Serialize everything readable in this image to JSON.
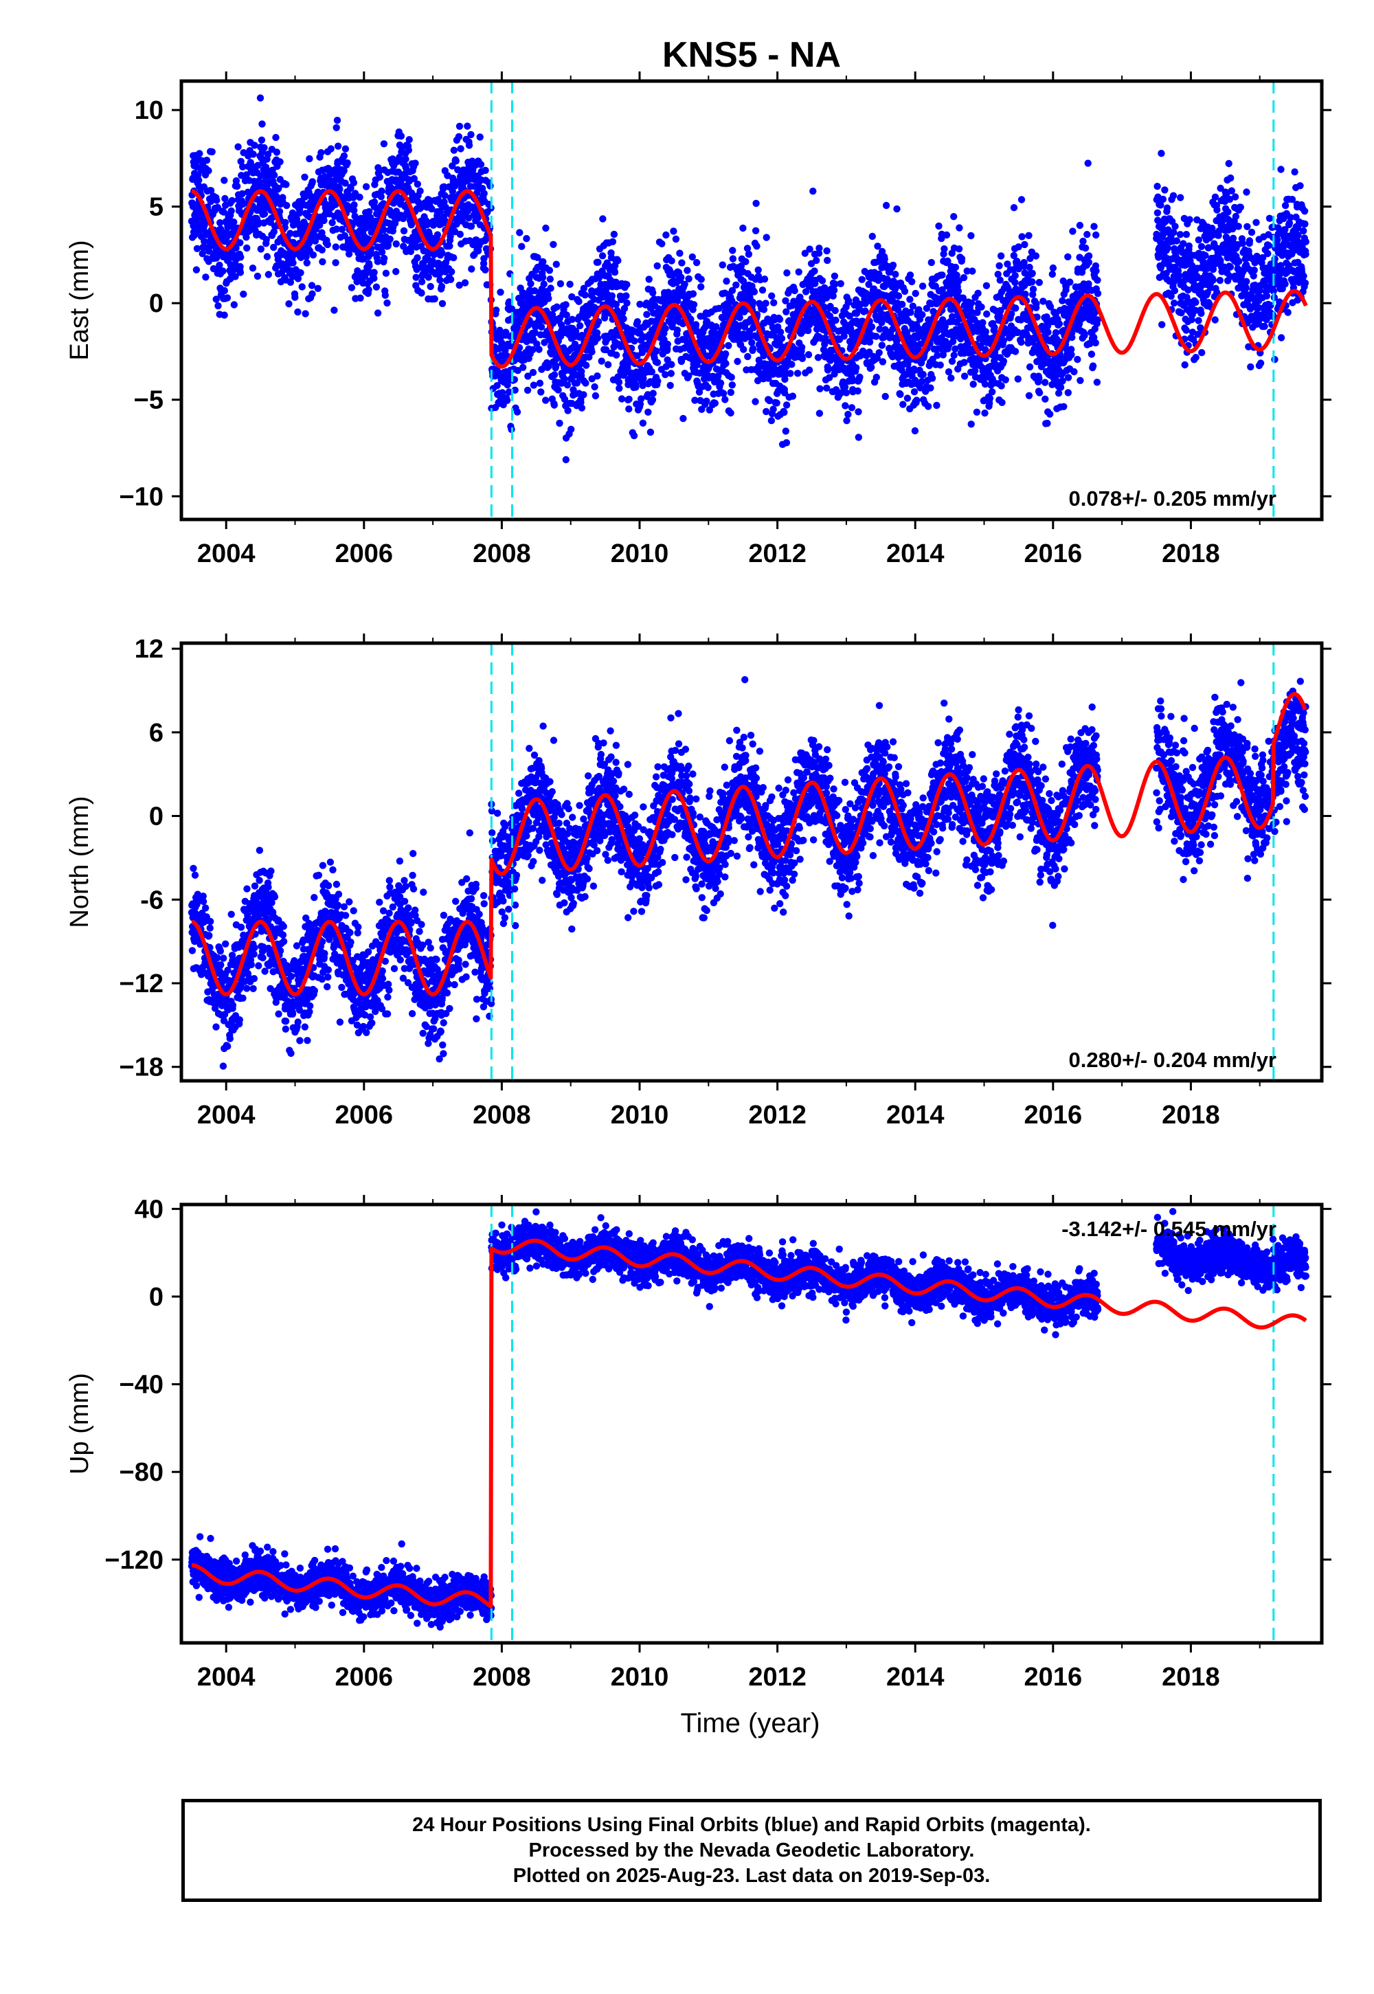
{
  "title": "KNS5 - NA",
  "chart_data": [
    {
      "type": "scatter",
      "ylabel": "East (mm)",
      "xlabel": "",
      "xlim": [
        2003.35,
        2019.9
      ],
      "ylim": [
        -11.2,
        11.5
      ],
      "xticks": [
        2004,
        2006,
        2008,
        2010,
        2012,
        2014,
        2016,
        2018
      ],
      "xtick_labels": [
        "2004",
        "2006",
        "2008",
        "2010",
        "2012",
        "2014",
        "2016",
        "2018"
      ],
      "yticks": [
        10,
        5,
        0,
        -5,
        -10
      ],
      "ytick_labels": [
        "10",
        "5",
        "0",
        "−5",
        "−10"
      ],
      "rate_text": "0.078+/- 0.205 mm/yr",
      "rate_position": "bottom-right",
      "series": [
        {
          "role": "daily positions",
          "color": "#0000ff",
          "segments": [
            {
              "t0": 2003.5,
              "t1": 2007.85,
              "base": 4.3,
              "trend": 0,
              "amp": 1.5,
              "noise": 1.5
            },
            {
              "t0": 2007.85,
              "t1": 2016.65,
              "base": -1.8,
              "trend": 0.08,
              "amp": 1.5,
              "noise": 1.6
            },
            {
              "t0": 2017.5,
              "t1": 2019.67,
              "base": 2.0,
              "trend": -0.15,
              "amp": 1.5,
              "noise": 1.6
            }
          ]
        },
        {
          "role": "model fit",
          "color": "#ff0000",
          "segments": [
            {
              "t0": 2003.5,
              "t1": 2007.85,
              "base": 4.3,
              "trend": 0,
              "amp": 1.5
            },
            {
              "t0": 2007.85,
              "t1": 2019.67,
              "base": -1.8,
              "trend": 0.08,
              "amp": 1.5
            }
          ]
        }
      ],
      "offsets": [
        2007.85,
        2008.15,
        2019.2
      ],
      "offset_color": "#00e5ee"
    },
    {
      "type": "scatter",
      "ylabel": "North (mm)",
      "xlabel": "",
      "xlim": [
        2003.35,
        2019.9
      ],
      "ylim": [
        -19,
        12.4
      ],
      "xticks": [
        2004,
        2006,
        2008,
        2010,
        2012,
        2014,
        2016,
        2018
      ],
      "xtick_labels": [
        "2004",
        "2006",
        "2008",
        "2010",
        "2012",
        "2014",
        "2016",
        "2018"
      ],
      "yticks": [
        12,
        6,
        0,
        -6,
        -12,
        -18
      ],
      "ytick_labels": [
        "12",
        "6",
        "0",
        "-6",
        "−12",
        "−18"
      ],
      "rate_text": "0.280+/- 0.204 mm/yr",
      "rate_position": "bottom-right",
      "series": [
        {
          "role": "daily positions",
          "color": "#0000ff",
          "segments": [
            {
              "t0": 2003.5,
              "t1": 2007.85,
              "base": -10.2,
              "trend": 0,
              "amp": 2.6,
              "noise": 1.8
            },
            {
              "t0": 2007.85,
              "t1": 2016.65,
              "base": -1.6,
              "trend": 0.3,
              "amp": 2.6,
              "noise": 1.8
            },
            {
              "t0": 2017.5,
              "t1": 2019.67,
              "base": 2.0,
              "trend": 0.6,
              "amp": 2.6,
              "noise": 1.8
            }
          ]
        },
        {
          "role": "model fit",
          "color": "#ff0000",
          "segments": [
            {
              "t0": 2003.5,
              "t1": 2007.85,
              "base": -10.2,
              "trend": 0,
              "amp": 2.6
            },
            {
              "t0": 2007.85,
              "t1": 2019.2,
              "base": -1.6,
              "trend": 0.3,
              "amp": 2.6
            },
            {
              "t0": 2019.2,
              "t1": 2019.67,
              "base": 6.0,
              "trend": 0.5,
              "amp": 2.6
            }
          ]
        }
      ],
      "offsets": [
        2007.85,
        2008.15,
        2019.2
      ],
      "offset_color": "#00e5ee"
    },
    {
      "type": "scatter",
      "ylabel": "Up (mm)",
      "xlabel": "Time (year)",
      "xlim": [
        2003.35,
        2019.9
      ],
      "ylim": [
        -158,
        42
      ],
      "xticks": [
        2004,
        2006,
        2008,
        2010,
        2012,
        2014,
        2016,
        2018
      ],
      "xtick_labels": [
        "2004",
        "2006",
        "2008",
        "2010",
        "2012",
        "2014",
        "2016",
        "2018"
      ],
      "yticks": [
        40,
        0,
        -40,
        -80,
        -120
      ],
      "ytick_labels": [
        "40",
        "0",
        "−40",
        "−80",
        "−120"
      ],
      "rate_text": "-3.142+/- 0.545 mm/yr",
      "rate_position": "top-right",
      "series": [
        {
          "role": "daily positions",
          "color": "#0000ff",
          "segments": [
            {
              "t0": 2003.5,
              "t1": 2007.85,
              "base": -126,
              "trend": -3.1,
              "amp": 3.5,
              "noise": 4.5
            },
            {
              "t0": 2007.85,
              "t1": 2016.65,
              "base": 24,
              "trend": -3.1,
              "amp": 3.5,
              "noise": 4.5
            },
            {
              "t0": 2017.5,
              "t1": 2019.67,
              "base": 20,
              "trend": -3.1,
              "amp": 3.5,
              "noise": 4.5
            }
          ]
        },
        {
          "role": "model fit",
          "color": "#ff0000",
          "segments": [
            {
              "t0": 2003.5,
              "t1": 2007.85,
              "base": -126,
              "trend": -3.1,
              "amp": 3.5
            },
            {
              "t0": 2007.85,
              "t1": 2019.67,
              "base": 24,
              "trend": -3.1,
              "amp": 3.5
            }
          ]
        }
      ],
      "offsets": [
        2007.85,
        2008.15,
        2019.2
      ],
      "offset_color": "#00e5ee"
    }
  ],
  "footer": {
    "line1": "24 Hour Positions Using Final Orbits (blue) and Rapid Orbits (magenta).",
    "line2": "Processed by the Nevada Geodetic Laboratory.",
    "line3": "Plotted on 2025-Aug-23. Last data on 2019-Sep-03."
  }
}
